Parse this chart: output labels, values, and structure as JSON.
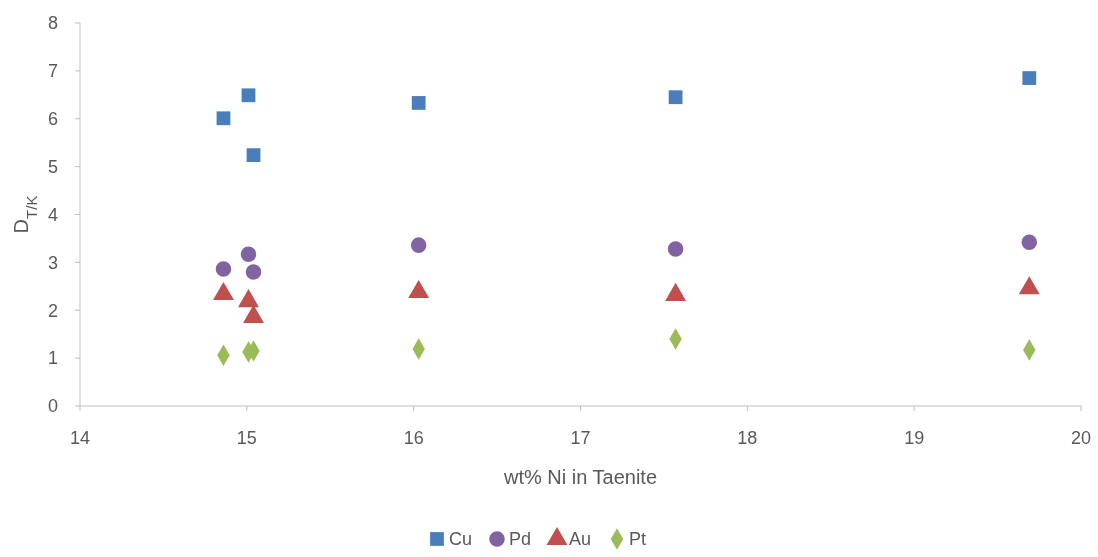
{
  "chart_data": {
    "type": "scatter",
    "xlabel": "wt% Ni in Taenite",
    "ylabel": "D$_{T/K}$",
    "xlim": [
      14,
      20
    ],
    "xticks": [
      14,
      15,
      16,
      17,
      18,
      19,
      20
    ],
    "ylim": [
      0,
      8
    ],
    "yticks": [
      0,
      1,
      2,
      3,
      4,
      5,
      6,
      7,
      8
    ],
    "legend": "bottom",
    "grid": false,
    "x": [
      14.86,
      15.01,
      15.04,
      16.03,
      17.57,
      19.69
    ],
    "series": [
      {
        "name": "Cu",
        "color": "#4a7ebb",
        "marker": "square",
        "values": [
          6.01,
          6.49,
          5.24,
          6.33,
          6.45,
          6.85
        ]
      },
      {
        "name": "Pd",
        "color": "#8064a2",
        "marker": "circle",
        "values": [
          2.86,
          3.17,
          2.8,
          3.36,
          3.28,
          3.42
        ]
      },
      {
        "name": "Au",
        "color": "#c0504d",
        "marker": "triangle",
        "values": [
          2.34,
          2.19,
          1.86,
          2.38,
          2.32,
          2.46
        ]
      },
      {
        "name": "Pt",
        "color": "#9bbb59",
        "marker": "diamond",
        "values": [
          1.06,
          1.13,
          1.15,
          1.19,
          1.4,
          1.17
        ]
      }
    ]
  }
}
